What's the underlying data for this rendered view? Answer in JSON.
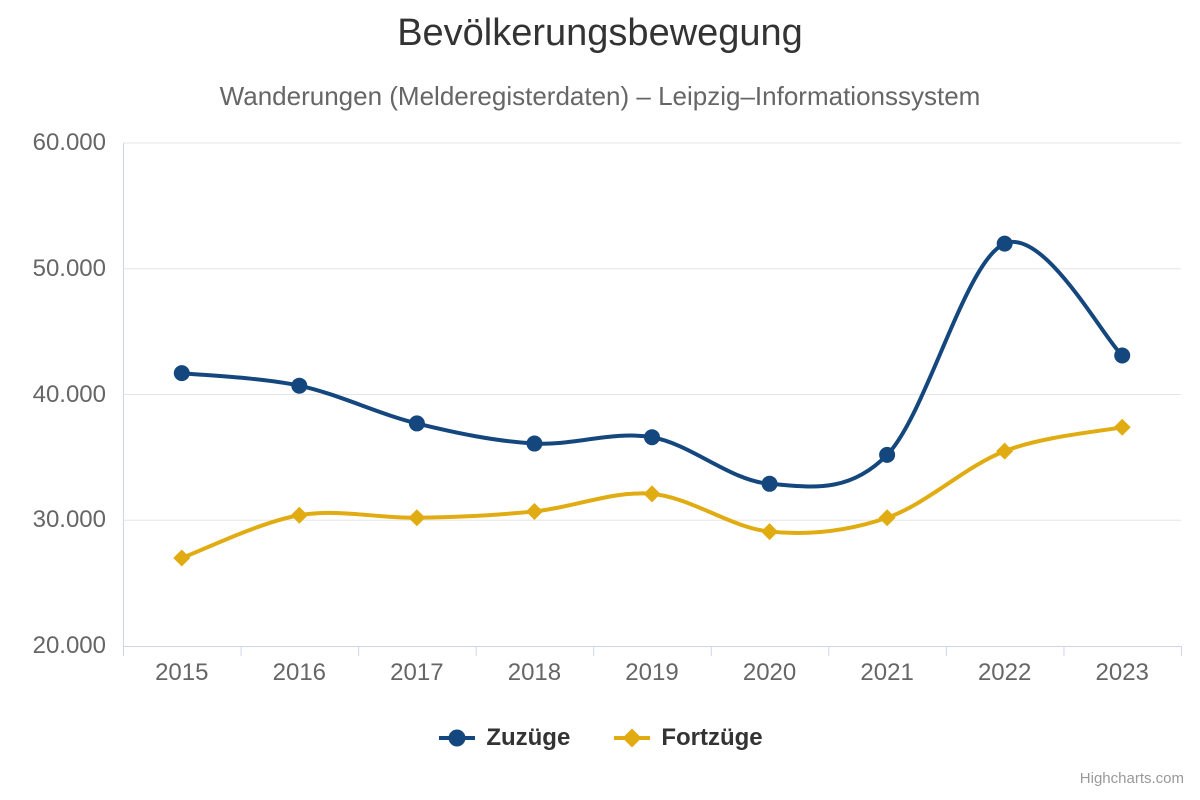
{
  "chart_data": {
    "type": "line",
    "curve": "spline",
    "title": "Bevölkerungsbewegung",
    "subtitle": "Wanderungen (Melderegisterdaten) – Leipzig–Informationssystem",
    "categories": [
      "2015",
      "2016",
      "2017",
      "2018",
      "2019",
      "2020",
      "2021",
      "2022",
      "2023"
    ],
    "series": [
      {
        "name": "Zuzüge",
        "color": "#14477E",
        "marker": "circle",
        "values": [
          41700,
          40700,
          37700,
          36100,
          36600,
          32900,
          35200,
          52000,
          43100
        ]
      },
      {
        "name": "Fortzüge",
        "color": "#E0AC12",
        "marker": "diamond",
        "values": [
          27000,
          30400,
          30200,
          30700,
          32100,
          29100,
          30200,
          35500,
          37400
        ]
      }
    ],
    "xlabel": "",
    "ylabel": "",
    "ylim": [
      20000,
      60000
    ],
    "ytick_values": [
      20000,
      30000,
      40000,
      50000,
      60000
    ],
    "ytick_labels": [
      "20.000",
      "30.000",
      "40.000",
      "50.000",
      "60.000"
    ],
    "grid": true,
    "legend_position": "bottom"
  },
  "credit": {
    "label": "Highcharts.com"
  },
  "colors": {
    "background": "#FFFFFF",
    "series_zuzuege": "#14477E",
    "series_fortzuege": "#E0AC12",
    "grid_line": "#E6E6E6",
    "axis_line": "#CCD6EB",
    "title_text": "#333333",
    "subtitle_text": "#666666",
    "axis_label_text": "#666666",
    "legend_text": "#333333",
    "credit_text": "#999999"
  }
}
